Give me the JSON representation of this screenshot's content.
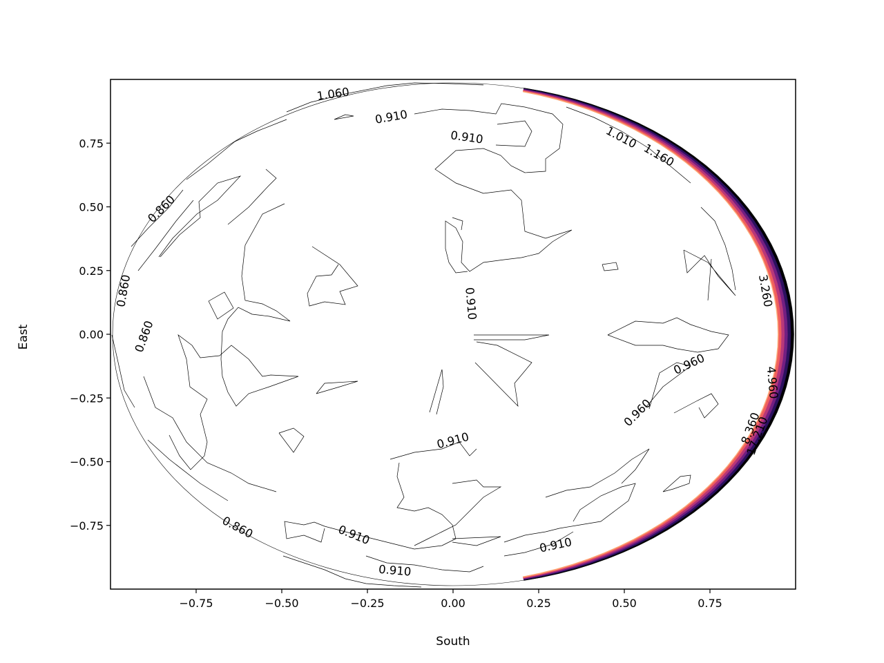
{
  "chart_data": {
    "type": "contour",
    "title": "",
    "xlabel": "South",
    "ylabel": "East",
    "xlim": [
      -1.0,
      1.0
    ],
    "ylim": [
      -1.0,
      1.0
    ],
    "grid": false,
    "legend": "none",
    "x_ticks": [
      {
        "value": -0.75,
        "label": "−0.75"
      },
      {
        "value": -0.5,
        "label": "−0.50"
      },
      {
        "value": -0.25,
        "label": "−0.25"
      },
      {
        "value": 0.0,
        "label": "0.00"
      },
      {
        "value": 0.25,
        "label": "0.25"
      },
      {
        "value": 0.5,
        "label": "0.50"
      },
      {
        "value": 0.75,
        "label": "0.75"
      }
    ],
    "y_ticks": [
      {
        "value": 0.75,
        "label": "0.75"
      },
      {
        "value": 0.5,
        "label": "0.50"
      },
      {
        "value": 0.25,
        "label": "0.25"
      },
      {
        "value": 0.0,
        "label": "0.00"
      },
      {
        "value": -0.25,
        "label": "−0.25"
      },
      {
        "value": -0.5,
        "label": "−0.50"
      },
      {
        "value": -0.75,
        "label": "−0.75"
      }
    ],
    "colormap": [
      "#000004",
      "#2c115f",
      "#721f81",
      "#b73779",
      "#f1605d",
      "#feb078"
    ],
    "contour_labels": [
      {
        "text": "1.060",
        "x": -0.35,
        "y": 0.94,
        "rotation": -8
      },
      {
        "text": "0.910",
        "x": -0.18,
        "y": 0.85,
        "rotation": -10
      },
      {
        "text": "0.910",
        "x": 0.04,
        "y": 0.77,
        "rotation": 8
      },
      {
        "text": "1.010",
        "x": 0.49,
        "y": 0.77,
        "rotation": 28
      },
      {
        "text": "1.160",
        "x": 0.6,
        "y": 0.7,
        "rotation": 30
      },
      {
        "text": "3.260",
        "x": 0.91,
        "y": 0.17,
        "rotation": 80
      },
      {
        "text": "0.860",
        "x": -0.85,
        "y": 0.49,
        "rotation": -45
      },
      {
        "text": "0.860",
        "x": -0.96,
        "y": 0.17,
        "rotation": -80
      },
      {
        "text": "0.860",
        "x": -0.9,
        "y": -0.01,
        "rotation": -70
      },
      {
        "text": "0.910",
        "x": 0.05,
        "y": 0.12,
        "rotation": 85
      },
      {
        "text": "0.960",
        "x": 0.69,
        "y": -0.12,
        "rotation": -25
      },
      {
        "text": "0.960",
        "x": 0.54,
        "y": -0.31,
        "rotation": -45
      },
      {
        "text": "4.960",
        "x": 0.93,
        "y": -0.19,
        "rotation": 85
      },
      {
        "text": "8.360",
        "x": 0.87,
        "y": -0.37,
        "rotation": -70
      },
      {
        "text": "17.210",
        "x": 0.89,
        "y": -0.4,
        "rotation": -70
      },
      {
        "text": "0.910",
        "x": 0.0,
        "y": -0.42,
        "rotation": -15
      },
      {
        "text": "0.860",
        "x": -0.63,
        "y": -0.76,
        "rotation": 28
      },
      {
        "text": "0.910",
        "x": -0.29,
        "y": -0.79,
        "rotation": 22
      },
      {
        "text": "0.910",
        "x": 0.3,
        "y": -0.83,
        "rotation": -12
      },
      {
        "text": "0.910",
        "x": -0.17,
        "y": -0.93,
        "rotation": 5
      }
    ]
  }
}
